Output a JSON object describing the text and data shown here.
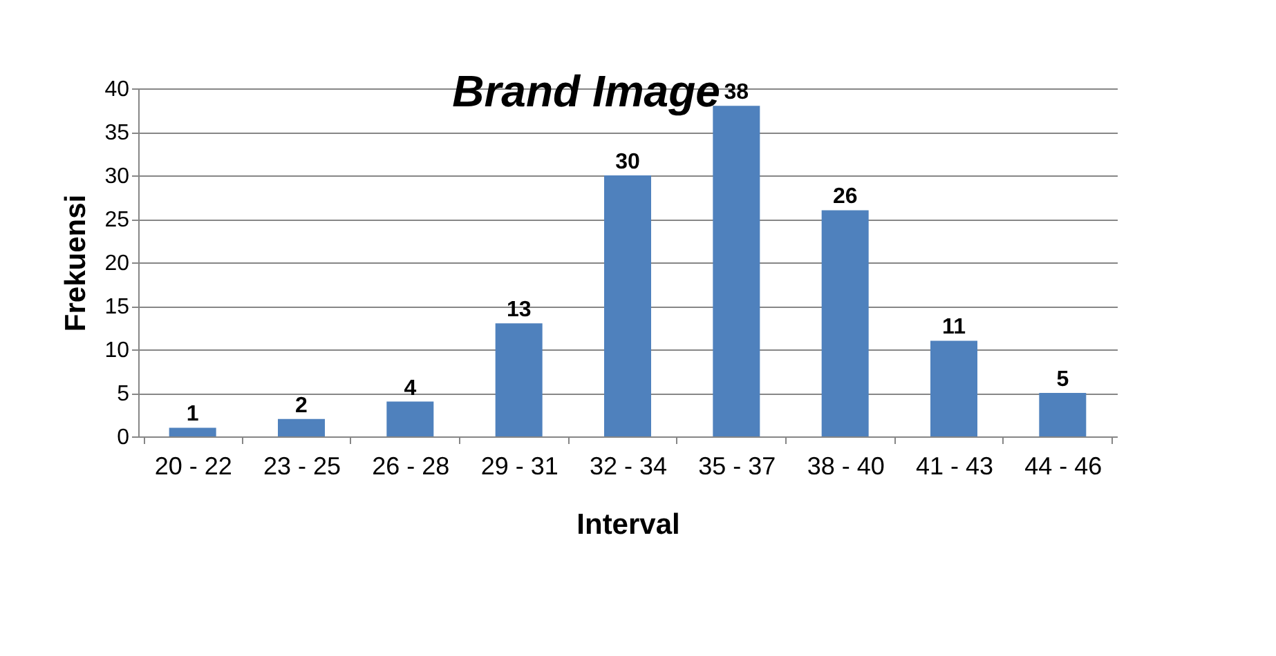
{
  "chart_data": {
    "type": "bar",
    "title": "Brand Image",
    "xlabel": "Interval",
    "ylabel": "Frekuensi",
    "categories": [
      "20 - 22",
      "23 - 25",
      "26 - 28",
      "29 - 31",
      "32 - 34",
      "35 - 37",
      "38 - 40",
      "41 - 43",
      "44 - 46"
    ],
    "values": [
      1,
      2,
      4,
      13,
      30,
      38,
      26,
      11,
      5
    ],
    "color": "#4f81bd",
    "ylim": [
      0,
      40
    ],
    "yticks": [
      0,
      5,
      10,
      15,
      20,
      25,
      30,
      35,
      40
    ],
    "grid": "y",
    "data_labels": true
  }
}
